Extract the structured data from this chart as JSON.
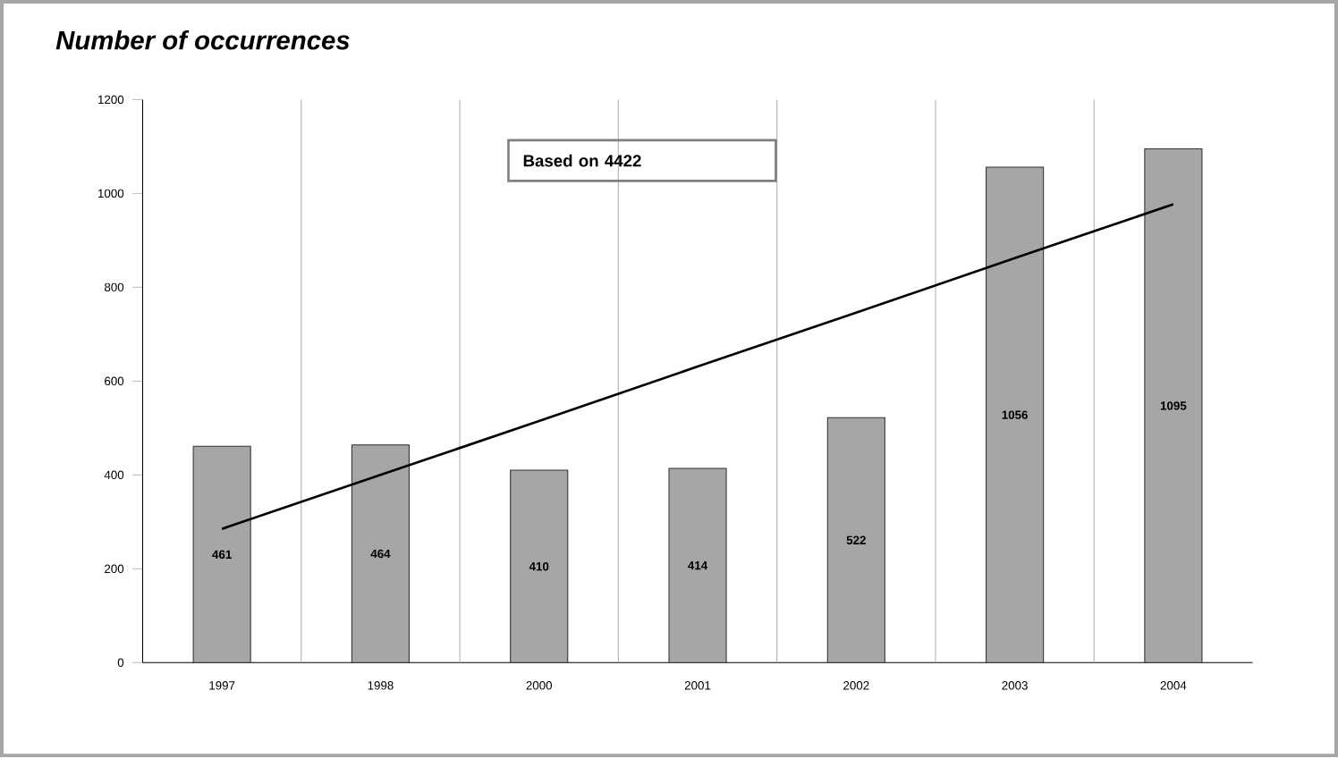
{
  "chart_data": {
    "type": "bar",
    "title": "Number of occurrences",
    "categories": [
      "1997",
      "1998",
      "2000",
      "2001",
      "2002",
      "2003",
      "2004"
    ],
    "series": [
      {
        "color": "#a6a6a6",
        "values": [
          461,
          464,
          410,
          414,
          522,
          1056,
          1095
        ],
        "value_labels": [
          "461",
          "464",
          "410",
          "414",
          "522",
          "1056",
          "1095"
        ]
      },
      {
        "type": "line",
        "color": "#000000",
        "values": [
          285,
          400,
          515,
          631,
          746,
          862,
          977
        ]
      }
    ],
    "ylim": [
      0,
      1200
    ],
    "yticks": [
      0,
      200,
      400,
      600,
      800,
      1000,
      1200
    ],
    "grid": "x",
    "annotations": [
      "Based on 4422"
    ]
  }
}
